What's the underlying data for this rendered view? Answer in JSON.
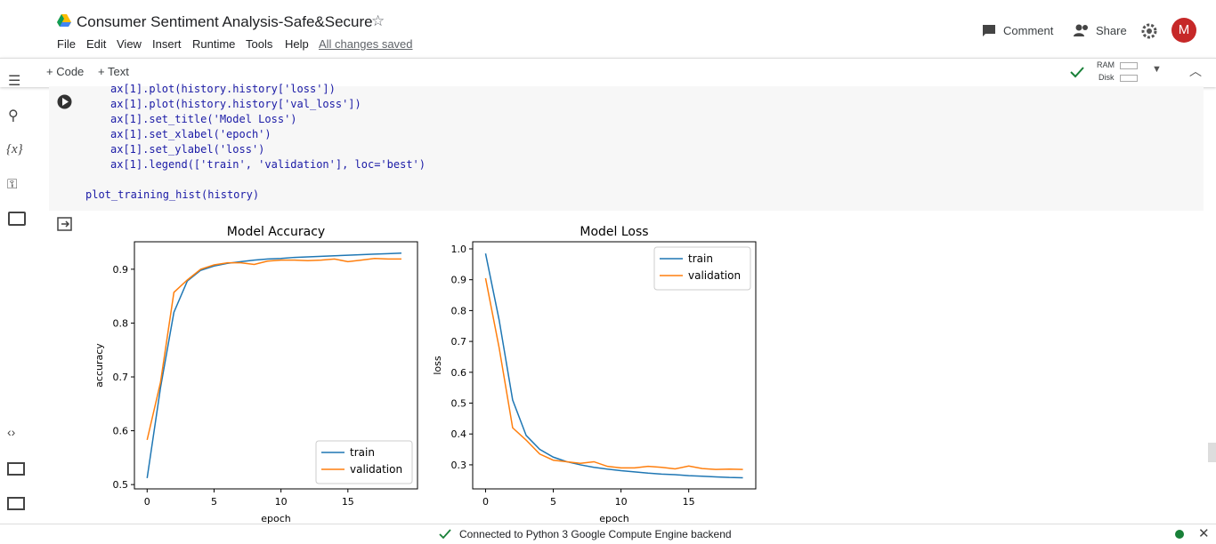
{
  "header": {
    "title": "Consumer Sentiment Analysis-Safe&Secure",
    "menus": [
      "File",
      "Edit",
      "View",
      "Insert",
      "Runtime",
      "Tools",
      "Help"
    ],
    "saved": "All changes saved",
    "comment": "Comment",
    "share": "Share",
    "avatar": "M"
  },
  "toolbar": {
    "code": "+ Code",
    "text": "+ Text",
    "ram": "RAM",
    "disk": "Disk"
  },
  "sidebar": {
    "variables": "{x}"
  },
  "code": {
    "lines": [
      "ax[1].plot(history.history['loss'])",
      "ax[1].plot(history.history['val_loss'])",
      "ax[1].set_title('Model Loss')",
      "ax[1].set_xlabel('epoch')",
      "ax[1].set_ylabel('loss')",
      "ax[1].legend(['train', 'validation'], loc='best')",
      "plot_training_hist(history)"
    ]
  },
  "status": {
    "text": "Connected to Python 3 Google Compute Engine backend"
  },
  "chart_data": [
    {
      "type": "line",
      "title": "Model Accuracy",
      "xlabel": "epoch",
      "ylabel": "accuracy",
      "legend": "lower right",
      "x": [
        0,
        1,
        2,
        3,
        4,
        5,
        6,
        7,
        8,
        9,
        10,
        11,
        12,
        13,
        14,
        15,
        16,
        17,
        18,
        19
      ],
      "series": [
        {
          "name": "train",
          "color": "#1f77b4",
          "values": [
            0.512,
            0.68,
            0.82,
            0.878,
            0.898,
            0.906,
            0.911,
            0.914,
            0.917,
            0.919,
            0.92,
            0.922,
            0.923,
            0.924,
            0.925,
            0.926,
            0.927,
            0.928,
            0.929,
            0.93
          ]
        },
        {
          "name": "validation",
          "color": "#ff7f0e",
          "values": [
            0.583,
            0.69,
            0.857,
            0.88,
            0.9,
            0.908,
            0.912,
            0.912,
            0.909,
            0.915,
            0.917,
            0.917,
            0.916,
            0.917,
            0.919,
            0.914,
            0.917,
            0.92,
            0.919,
            0.919
          ]
        }
      ],
      "xlim": [
        -0.95,
        20.2
      ],
      "xticks": [
        0,
        5,
        10,
        15
      ],
      "ylim": [
        0.492,
        0.951
      ],
      "yticks": [
        0.5,
        0.6,
        0.7,
        0.8,
        0.9
      ]
    },
    {
      "type": "line",
      "title": "Model Loss",
      "xlabel": "epoch",
      "ylabel": "loss",
      "legend": "upper right",
      "x": [
        0,
        1,
        2,
        3,
        4,
        5,
        6,
        7,
        8,
        9,
        10,
        11,
        12,
        13,
        14,
        15,
        16,
        17,
        18,
        19
      ],
      "series": [
        {
          "name": "train",
          "color": "#1f77b4",
          "values": [
            0.985,
            0.77,
            0.51,
            0.395,
            0.35,
            0.325,
            0.31,
            0.3,
            0.292,
            0.286,
            0.281,
            0.277,
            0.273,
            0.27,
            0.268,
            0.265,
            0.263,
            0.261,
            0.259,
            0.258
          ]
        },
        {
          "name": "validation",
          "color": "#ff7f0e",
          "values": [
            0.905,
            0.68,
            0.42,
            0.38,
            0.335,
            0.315,
            0.31,
            0.305,
            0.31,
            0.295,
            0.29,
            0.29,
            0.295,
            0.292,
            0.287,
            0.296,
            0.288,
            0.285,
            0.286,
            0.285
          ]
        }
      ],
      "xlim": [
        -0.95,
        19.95
      ],
      "xticks": [
        0,
        5,
        10,
        15
      ],
      "ylim": [
        0.222,
        1.023
      ],
      "yticks": [
        0.3,
        0.4,
        0.5,
        0.6,
        0.7,
        0.8,
        0.9,
        {
          "value": 1,
          "label": "1.0"
        }
      ]
    }
  ]
}
